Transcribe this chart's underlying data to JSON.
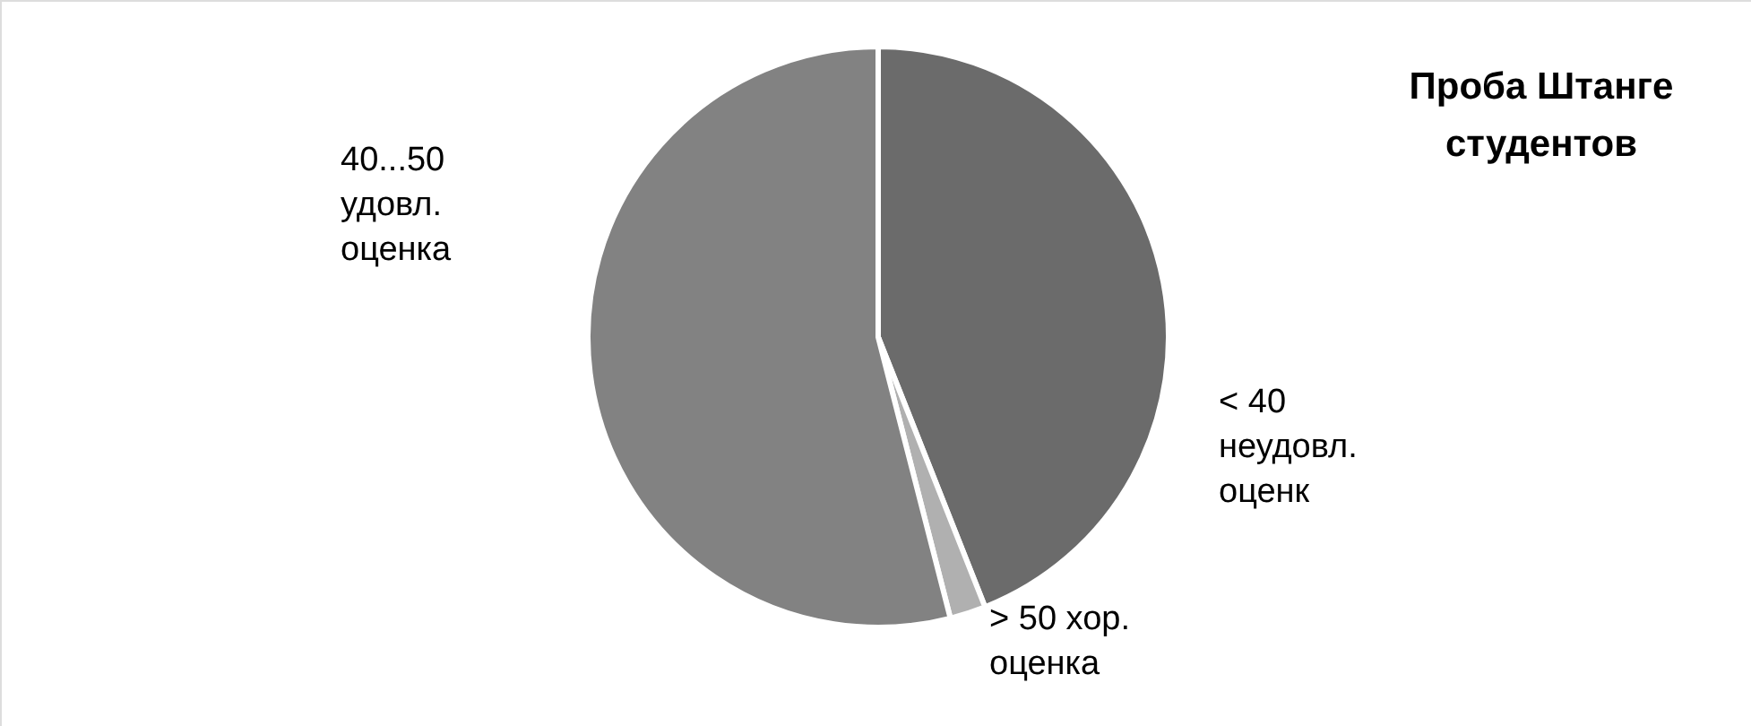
{
  "chart_data": {
    "type": "pie",
    "title": "Проба Штанге\nстудентов",
    "categories": [
      "< 40\nнеудовл.\nоценк",
      "> 50 хор.\nоценка",
      "40...50\nудовл.\nоценка"
    ],
    "values": [
      44,
      2,
      54
    ],
    "colors": [
      "#6b6b6b",
      "#b0b0b0",
      "#828282"
    ]
  }
}
